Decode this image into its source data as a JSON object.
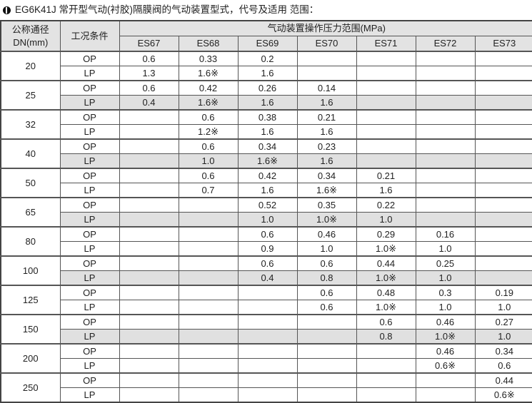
{
  "title": "EG6K41J 常开型气动(衬胶)隔膜阀的气动装置型式，代号及适用 范围：",
  "icon": "bullet-icon",
  "header": {
    "dn": "公称通径DN(mm)",
    "condition": "工况条件",
    "range": "气动装置操作压力范围(MPa)",
    "models": [
      "ES67",
      "ES68",
      "ES69",
      "ES70",
      "ES71",
      "ES72",
      "ES73"
    ]
  },
  "shade_color": "#e0e0e0",
  "groups": [
    {
      "dn": "20",
      "shaded": false,
      "rows": [
        {
          "cond": "OP",
          "values": [
            "0.6",
            "0.33",
            "0.2",
            "",
            "",
            "",
            ""
          ]
        },
        {
          "cond": "LP",
          "values": [
            "1.3",
            "1.6※",
            "1.6",
            "",
            "",
            "",
            ""
          ]
        }
      ]
    },
    {
      "dn": "25",
      "shaded": true,
      "rows": [
        {
          "cond": "OP",
          "values": [
            "0.6",
            "0.42",
            "0.26",
            "0.14",
            "",
            "",
            ""
          ]
        },
        {
          "cond": "LP",
          "values": [
            "0.4",
            "1.6※",
            "1.6",
            "1.6",
            "",
            "",
            ""
          ]
        }
      ]
    },
    {
      "dn": "32",
      "shaded": false,
      "rows": [
        {
          "cond": "OP",
          "values": [
            "",
            "0.6",
            "0.38",
            "0.21",
            "",
            "",
            ""
          ]
        },
        {
          "cond": "LP",
          "values": [
            "",
            "1.2※",
            "1.6",
            "1.6",
            "",
            "",
            ""
          ]
        }
      ]
    },
    {
      "dn": "40",
      "shaded": true,
      "rows": [
        {
          "cond": "OP",
          "values": [
            "",
            "0.6",
            "0.34",
            "0.23",
            "",
            "",
            ""
          ]
        },
        {
          "cond": "LP",
          "values": [
            "",
            "1.0",
            "1.6※",
            "1.6",
            "",
            "",
            ""
          ]
        }
      ]
    },
    {
      "dn": "50",
      "shaded": false,
      "rows": [
        {
          "cond": "OP",
          "values": [
            "",
            "0.6",
            "0.42",
            "0.34",
            "0.21",
            "",
            ""
          ]
        },
        {
          "cond": "LP",
          "values": [
            "",
            "0.7",
            "1.6",
            "1.6※",
            "1.6",
            "",
            ""
          ]
        }
      ]
    },
    {
      "dn": "65",
      "shaded": true,
      "rows": [
        {
          "cond": "OP",
          "values": [
            "",
            "",
            "0.52",
            "0.35",
            "0.22",
            "",
            ""
          ]
        },
        {
          "cond": "LP",
          "values": [
            "",
            "",
            "1.0",
            "1.0※",
            "1.0",
            "",
            ""
          ]
        }
      ]
    },
    {
      "dn": "80",
      "shaded": false,
      "rows": [
        {
          "cond": "OP",
          "values": [
            "",
            "",
            "0.6",
            "0.46",
            "0.29",
            "0.16",
            ""
          ]
        },
        {
          "cond": "LP",
          "values": [
            "",
            "",
            "0.9",
            "1.0",
            "1.0※",
            "1.0",
            ""
          ]
        }
      ]
    },
    {
      "dn": "100",
      "shaded": true,
      "rows": [
        {
          "cond": "OP",
          "values": [
            "",
            "",
            "0.6",
            "0.6",
            "0.44",
            "0.25",
            ""
          ]
        },
        {
          "cond": "LP",
          "values": [
            "",
            "",
            "0.4",
            "0.8",
            "1.0※",
            "1.0",
            ""
          ]
        }
      ]
    },
    {
      "dn": "125",
      "shaded": false,
      "rows": [
        {
          "cond": "OP",
          "values": [
            "",
            "",
            "",
            "0.6",
            "0.48",
            "0.3",
            "0.19"
          ]
        },
        {
          "cond": "LP",
          "values": [
            "",
            "",
            "",
            "0.6",
            "1.0※",
            "1.0",
            "1.0"
          ]
        }
      ]
    },
    {
      "dn": "150",
      "shaded": true,
      "rows": [
        {
          "cond": "OP",
          "values": [
            "",
            "",
            "",
            "",
            "0.6",
            "0.46",
            "0.27"
          ]
        },
        {
          "cond": "LP",
          "values": [
            "",
            "",
            "",
            "",
            "0.8",
            "1.0※",
            "1.0"
          ]
        }
      ]
    },
    {
      "dn": "200",
      "shaded": false,
      "rows": [
        {
          "cond": "OP",
          "values": [
            "",
            "",
            "",
            "",
            "",
            "0.46",
            "0.34"
          ]
        },
        {
          "cond": "LP",
          "values": [
            "",
            "",
            "",
            "",
            "",
            "0.6※",
            "0.6"
          ]
        }
      ]
    },
    {
      "dn": "250",
      "shaded": false,
      "rows": [
        {
          "cond": "OP",
          "values": [
            "",
            "",
            "",
            "",
            "",
            "",
            "0.44"
          ]
        },
        {
          "cond": "LP",
          "values": [
            "",
            "",
            "",
            "",
            "",
            "",
            "0.6※"
          ]
        }
      ]
    }
  ]
}
